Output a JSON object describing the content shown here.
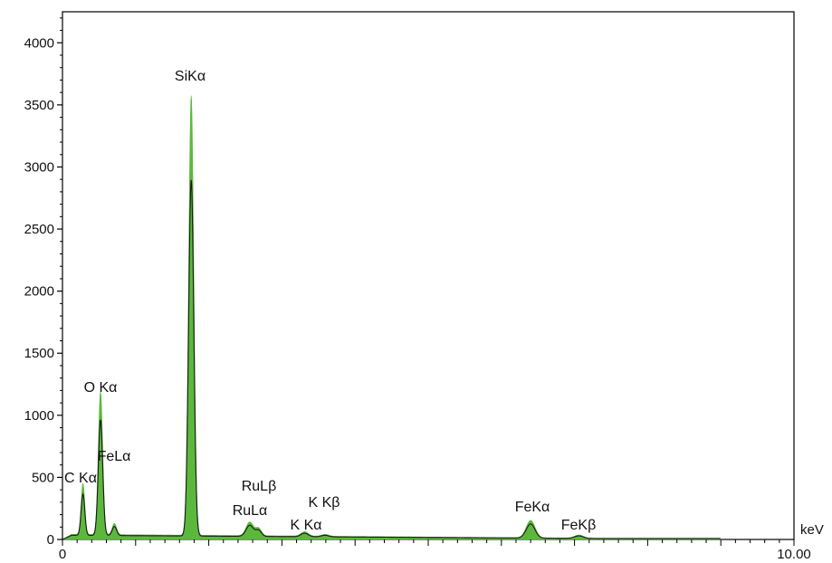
{
  "chart_data": {
    "type": "area",
    "title": "",
    "xlabel": "keV",
    "ylabel": "",
    "xlim": [
      0,
      10
    ],
    "ylim": [
      0,
      4250
    ],
    "x_tick_labels": [
      "0",
      "10.00"
    ],
    "y_ticks": [
      0,
      500,
      1000,
      1500,
      2000,
      2500,
      3000,
      3500,
      4000
    ],
    "grid": false,
    "fill_color": "#5cb83c",
    "outline_color": "#1a1a1a",
    "background_level": 40,
    "peaks": [
      {
        "label": "C Kα",
        "center": 0.28,
        "height": 410,
        "width": 0.025
      },
      {
        "label": "O Kα",
        "center": 0.52,
        "height": 1150,
        "width": 0.03
      },
      {
        "label": "FeLα",
        "center": 0.71,
        "height": 90,
        "width": 0.03
      },
      {
        "label": "SiKα",
        "center": 1.76,
        "height": 3540,
        "width": 0.035
      },
      {
        "label": "RuLα",
        "center": 2.56,
        "height": 110,
        "width": 0.05
      },
      {
        "label": "RuLβ",
        "center": 2.68,
        "height": 60,
        "width": 0.04
      },
      {
        "label": "K Kα",
        "center": 3.31,
        "height": 35,
        "width": 0.05
      },
      {
        "label": "K Kβ",
        "center": 3.59,
        "height": 15,
        "width": 0.05
      },
      {
        "label": "FeKα",
        "center": 6.4,
        "height": 140,
        "width": 0.06
      },
      {
        "label": "FeKβ",
        "center": 7.06,
        "height": 25,
        "width": 0.06
      }
    ]
  }
}
